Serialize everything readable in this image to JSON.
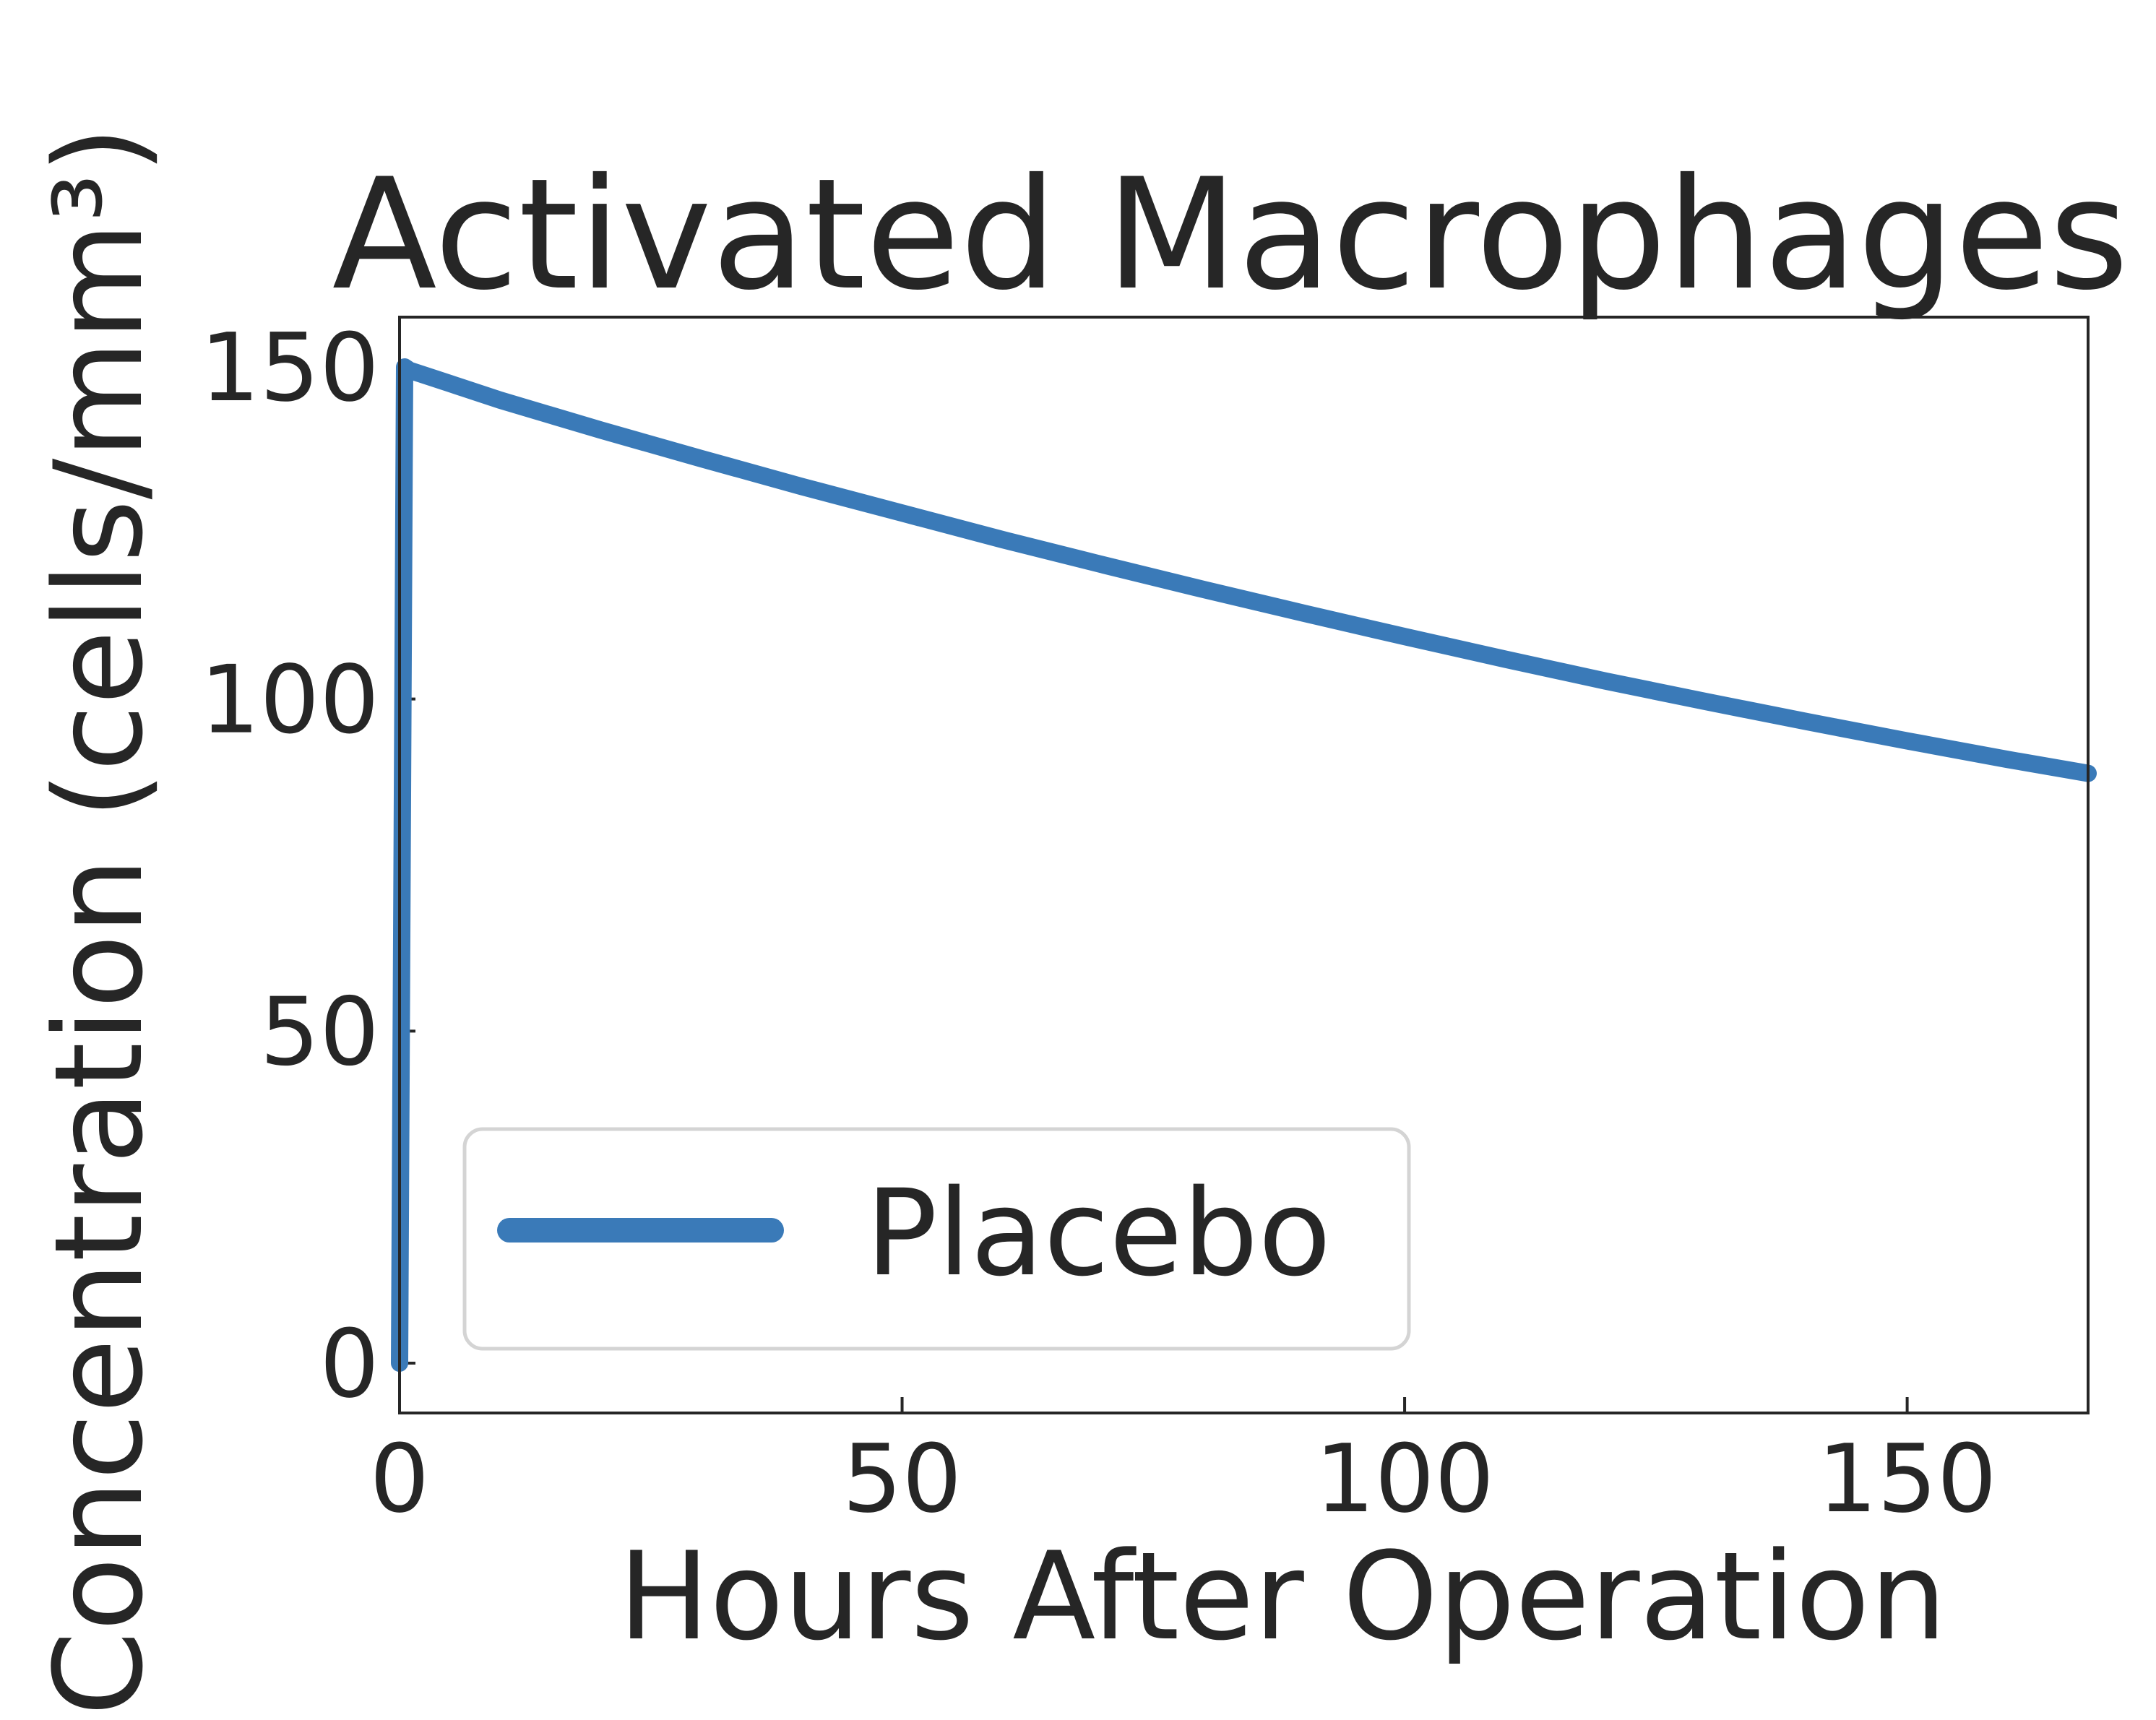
{
  "chart_data": {
    "type": "line",
    "title": "Activated Macrophages",
    "xlabel": "Hours After Operation",
    "ylabel": "Concentration (cells/mm³)",
    "xlim": [
      0,
      168
    ],
    "ylim": [
      -7.5,
      157.5
    ],
    "xticks": [
      0,
      50,
      100,
      150
    ],
    "yticks": [
      0,
      50,
      100,
      150
    ],
    "grid": false,
    "legend_position": "lower-left",
    "series": [
      {
        "name": "Placebo",
        "color": "#3a7ab8",
        "x": [
          0,
          0.5,
          1,
          5,
          10,
          20,
          30,
          40,
          50,
          60,
          70,
          80,
          90,
          100,
          110,
          120,
          130,
          140,
          150,
          160,
          168
        ],
        "y": [
          0,
          150,
          149.5,
          147.5,
          145,
          140.5,
          136.2,
          132,
          128,
          124,
          120.2,
          116.5,
          112.9,
          109.4,
          106,
          102.7,
          99.6,
          96.6,
          93.7,
          90.9,
          88.8
        ]
      }
    ]
  }
}
